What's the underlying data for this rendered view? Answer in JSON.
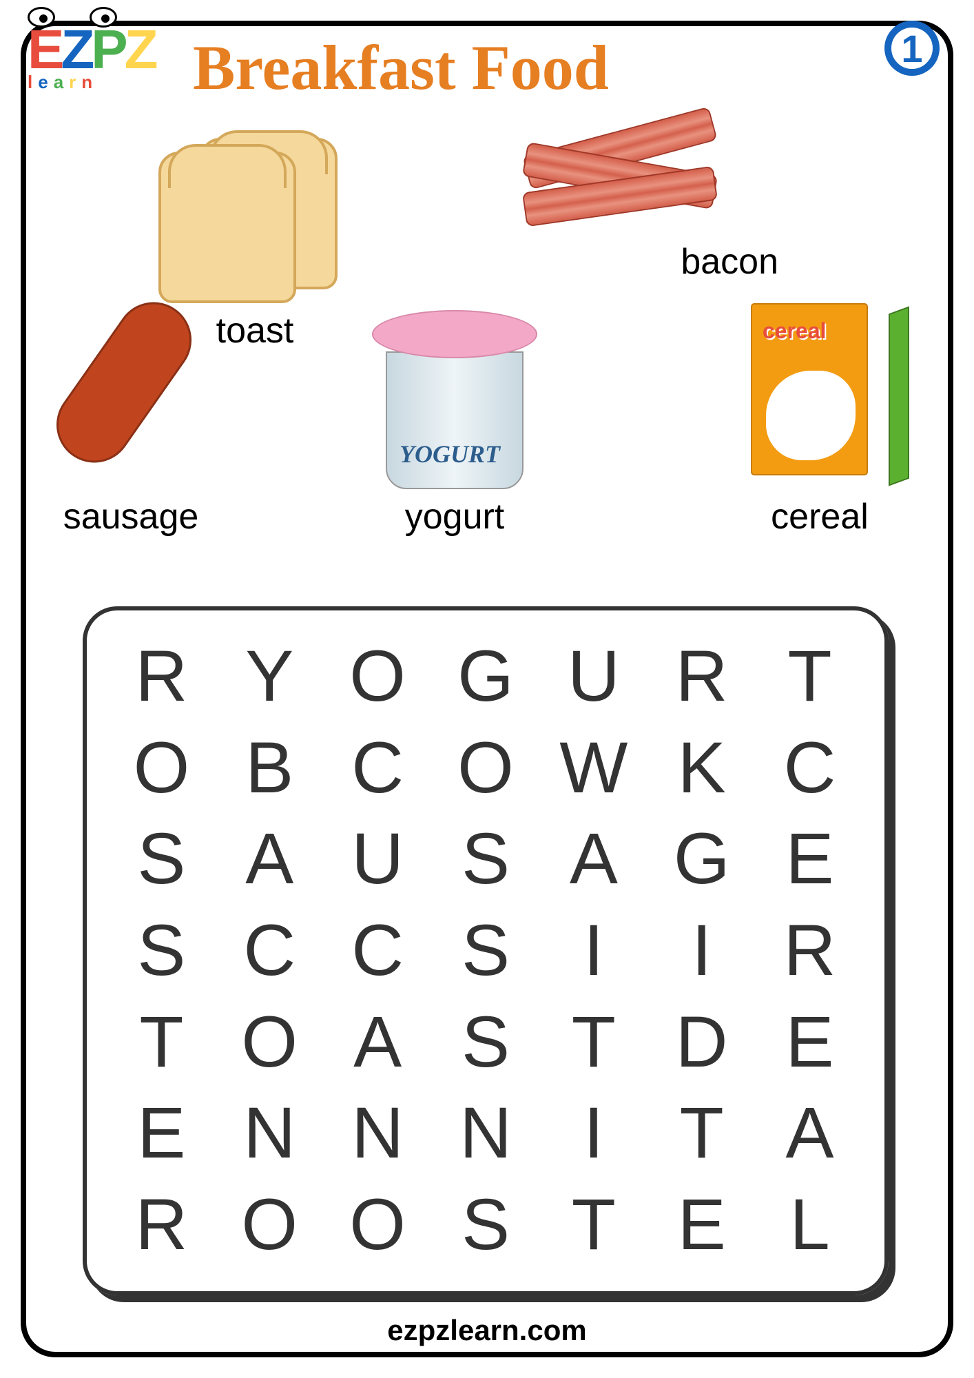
{
  "title": "Breakfast Food",
  "page_number": "1",
  "logo": {
    "main": "EZPZ",
    "sub": "learn"
  },
  "foods": {
    "toast": {
      "label": "toast"
    },
    "bacon": {
      "label": "bacon"
    },
    "sausage": {
      "label": "sausage"
    },
    "yogurt": {
      "label": "yogurt",
      "cup_text": "YOGURT"
    },
    "cereal": {
      "label": "cereal",
      "box_text": "cereal"
    }
  },
  "word_search": {
    "rows": 7,
    "cols": 7,
    "grid": [
      [
        "R",
        "Y",
        "O",
        "G",
        "U",
        "R",
        "T"
      ],
      [
        "O",
        "B",
        "C",
        "O",
        "W",
        "K",
        "C"
      ],
      [
        "S",
        "A",
        "U",
        "S",
        "A",
        "G",
        "E"
      ],
      [
        "S",
        "C",
        "C",
        "S",
        "I",
        "I",
        "R"
      ],
      [
        "T",
        "O",
        "A",
        "S",
        "T",
        "D",
        "E"
      ],
      [
        "E",
        "N",
        "N",
        "N",
        "I",
        "T",
        "A"
      ],
      [
        "R",
        "O",
        "O",
        "S",
        "T",
        "E",
        "L"
      ]
    ],
    "letter_fontsize": 105,
    "letter_color": "#333333"
  },
  "footer": "ezpzlearn.com",
  "colors": {
    "title": "#e67e22",
    "border": "#000000",
    "accent_blue": "#1565c0",
    "sausage": "#c0451f",
    "toast": "#f5d89b",
    "bacon": "#d4604c",
    "yogurt_lid": "#f4a8c8",
    "cereal_box": "#f39c12",
    "cereal_side": "#5cb030"
  }
}
